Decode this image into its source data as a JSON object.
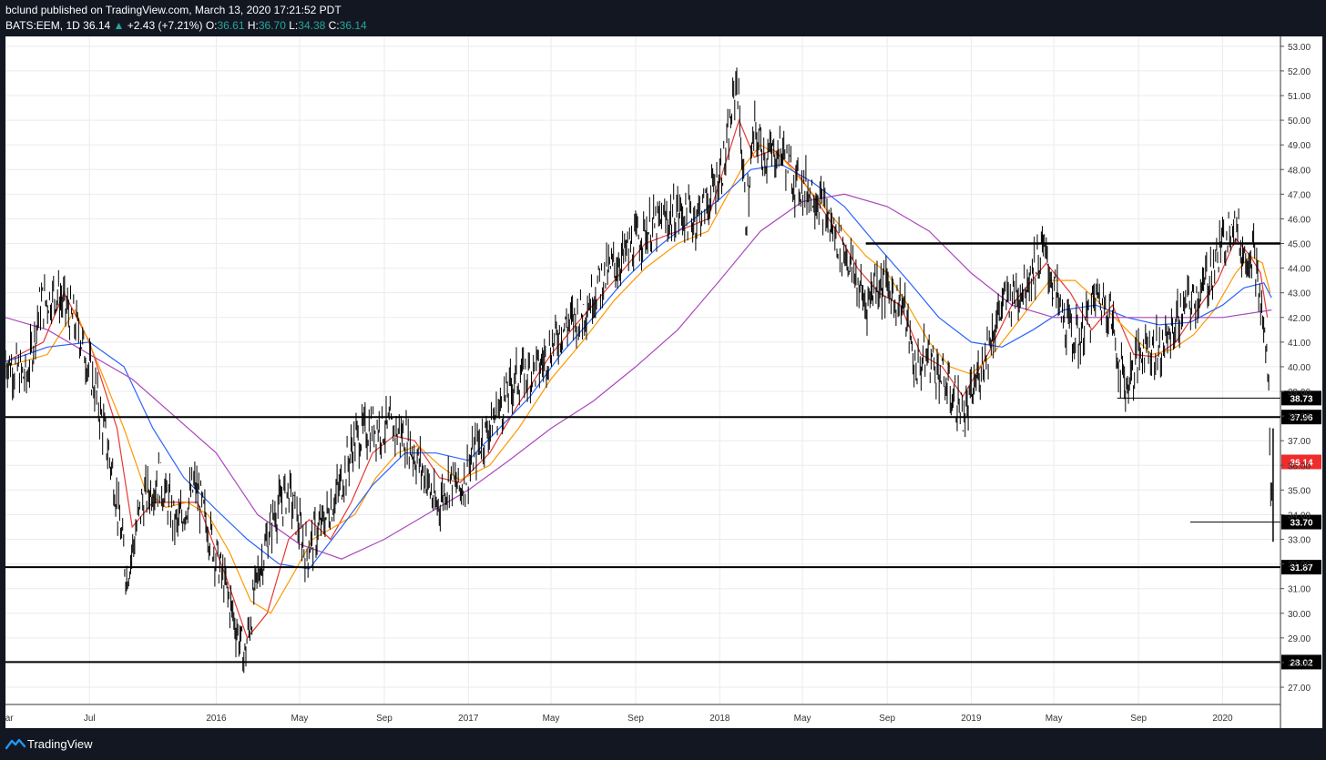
{
  "header": {
    "published_line": "bclund published on TradingView.com, March 13, 2020 17:21:52 PDT",
    "symbol": "BATS:EEM, 1D",
    "last": "36.14",
    "arrow": "▲",
    "change": "+2.43 (+7.21%)",
    "o_label": "O:",
    "o_value": "36.61",
    "h_label": "H:",
    "h_value": "36.70",
    "l_label": "L:",
    "l_value": "34.38",
    "c_label": "C:",
    "c_value": "36.14"
  },
  "footer": {
    "brand": "TradingView",
    "logo_icon": "tradingview-logo-icon"
  },
  "colors": {
    "background": "#ffffff",
    "grid": "#e9ebef",
    "candles": "#000000",
    "ma_red": "#e53935",
    "ma_orange": "#ff9800",
    "ma_blue": "#2962ff",
    "ma_purple": "#ab47bc",
    "last_price_label": "#ef2b2b"
  },
  "chart_data": {
    "type": "line",
    "title": "",
    "xlabel": "",
    "ylabel": "",
    "x_range": [
      "2015-03-01",
      "2020-03-25"
    ],
    "ylim": [
      26.3,
      53.4
    ],
    "grid": true,
    "x_ticks": [
      {
        "label": "Mar",
        "date": "2015-03-01"
      },
      {
        "label": "Jul",
        "date": "2015-07-01"
      },
      {
        "label": "2016",
        "date": "2016-01-01"
      },
      {
        "label": "May",
        "date": "2016-05-01"
      },
      {
        "label": "Sep",
        "date": "2016-09-01"
      },
      {
        "label": "2017",
        "date": "2017-01-01"
      },
      {
        "label": "May",
        "date": "2017-05-01"
      },
      {
        "label": "Sep",
        "date": "2017-09-01"
      },
      {
        "label": "2018",
        "date": "2018-01-01"
      },
      {
        "label": "May",
        "date": "2018-05-01"
      },
      {
        "label": "Sep",
        "date": "2018-09-01"
      },
      {
        "label": "2019",
        "date": "2019-01-01"
      },
      {
        "label": "May",
        "date": "2019-05-01"
      },
      {
        "label": "Sep",
        "date": "2019-09-01"
      },
      {
        "label": "2020",
        "date": "2020-01-01"
      }
    ],
    "y_ticks": [
      "27.00",
      "28.00",
      "29.00",
      "30.00",
      "31.00",
      "32.00",
      "33.00",
      "34.00",
      "35.00",
      "36.00",
      "37.00",
      "38.00",
      "39.00",
      "40.00",
      "41.00",
      "42.00",
      "43.00",
      "44.00",
      "45.00",
      "46.00",
      "47.00",
      "48.00",
      "49.00",
      "50.00",
      "51.00",
      "52.00",
      "53.00"
    ],
    "price_series": {
      "name": "BATS:EEM",
      "x": [
        "2015-03-01",
        "2015-04-01",
        "2015-04-20",
        "2015-05-15",
        "2015-06-15",
        "2015-07-10",
        "2015-08-05",
        "2015-08-24",
        "2015-09-15",
        "2015-10-10",
        "2015-11-05",
        "2015-12-01",
        "2015-12-20",
        "2016-01-20",
        "2016-02-11",
        "2016-03-01",
        "2016-03-25",
        "2016-04-15",
        "2016-05-10",
        "2016-06-01",
        "2016-06-27",
        "2016-07-20",
        "2016-08-15",
        "2016-09-07",
        "2016-10-01",
        "2016-11-01",
        "2016-11-15",
        "2016-12-05",
        "2016-12-20",
        "2017-01-15",
        "2017-02-10",
        "2017-03-10",
        "2017-04-15",
        "2017-05-15",
        "2017-06-15",
        "2017-07-15",
        "2017-08-15",
        "2017-09-15",
        "2017-10-10",
        "2017-11-01",
        "2017-11-25",
        "2017-12-15",
        "2018-01-10",
        "2018-01-26",
        "2018-02-08",
        "2018-02-20",
        "2018-03-10",
        "2018-04-01",
        "2018-04-20",
        "2018-05-20",
        "2018-06-15",
        "2018-07-05",
        "2018-08-01",
        "2018-08-15",
        "2018-09-07",
        "2018-09-25",
        "2018-10-11",
        "2018-11-01",
        "2018-12-01",
        "2018-12-24",
        "2019-01-15",
        "2019-02-15",
        "2019-03-15",
        "2019-04-17",
        "2019-05-13",
        "2019-06-05",
        "2019-07-01",
        "2019-07-20",
        "2019-08-05",
        "2019-08-15",
        "2019-09-10",
        "2019-10-01",
        "2019-10-20",
        "2019-11-10",
        "2019-12-01",
        "2020-01-02",
        "2020-01-15",
        "2020-01-31",
        "2020-02-15",
        "2020-02-27",
        "2020-03-05",
        "2020-03-09",
        "2020-03-12",
        "2020-03-13"
      ],
      "values": [
        40.3,
        39.5,
        42.5,
        43.0,
        41.5,
        39.0,
        35.5,
        31.5,
        34.5,
        35.5,
        33.5,
        35.2,
        33.5,
        30.5,
        28.2,
        31.5,
        34.0,
        35.0,
        32.5,
        33.5,
        35.0,
        37.0,
        37.6,
        37.5,
        37.2,
        35.5,
        34.2,
        35.5,
        35.0,
        36.8,
        38.0,
        39.5,
        40.0,
        41.5,
        42.2,
        43.6,
        44.5,
        45.5,
        45.8,
        46.3,
        46.0,
        46.7,
        48.5,
        51.8,
        46.0,
        49.5,
        48.5,
        48.8,
        47.5,
        47.0,
        45.5,
        44.5,
        42.5,
        43.5,
        43.0,
        42.5,
        40.0,
        40.5,
        39.0,
        38.0,
        40.0,
        42.5,
        43.2,
        44.7,
        42.0,
        41.0,
        42.8,
        42.5,
        40.0,
        39.2,
        41.0,
        40.6,
        41.5,
        42.5,
        43.0,
        45.0,
        46.2,
        44.5,
        44.8,
        42.0,
        40.5,
        38.0,
        33.7,
        36.14
      ]
    },
    "moving_averages": [
      {
        "color": "#e53935",
        "x": [
          "2015-03-01",
          "2015-04-25",
          "2015-05-25",
          "2015-07-01",
          "2015-08-10",
          "2015-09-01",
          "2015-10-01",
          "2015-11-01",
          "2015-12-05",
          "2016-01-15",
          "2016-02-15",
          "2016-03-15",
          "2016-04-15",
          "2016-05-15",
          "2016-06-15",
          "2016-07-15",
          "2016-08-15",
          "2016-09-15",
          "2016-10-15",
          "2016-11-20",
          "2016-12-20",
          "2017-02-01",
          "2017-03-15",
          "2017-05-01",
          "2017-06-15",
          "2017-08-01",
          "2017-09-15",
          "2017-11-01",
          "2017-12-15",
          "2018-01-29",
          "2018-02-20",
          "2018-03-20",
          "2018-04-20",
          "2018-05-20",
          "2018-06-20",
          "2018-07-20",
          "2018-08-20",
          "2018-09-20",
          "2018-10-20",
          "2018-11-20",
          "2018-12-20",
          "2019-01-25",
          "2019-03-01",
          "2019-04-20",
          "2019-05-25",
          "2019-06-25",
          "2019-07-25",
          "2019-08-25",
          "2019-09-25",
          "2019-10-25",
          "2019-11-25",
          "2019-12-25",
          "2020-01-20",
          "2020-02-10",
          "2020-02-25",
          "2020-03-06"
        ],
        "values": [
          40.2,
          41.0,
          43.0,
          41.0,
          37.5,
          33.5,
          34.5,
          34.5,
          34.5,
          31.5,
          29.0,
          30.0,
          33.0,
          33.8,
          33.0,
          34.5,
          36.5,
          37.2,
          37.0,
          35.5,
          35.3,
          36.5,
          38.5,
          40.5,
          42.0,
          43.5,
          45.0,
          45.5,
          46.0,
          50.0,
          48.5,
          48.8,
          48.0,
          46.8,
          45.5,
          44.0,
          43.0,
          42.5,
          40.5,
          40.0,
          38.8,
          40.5,
          42.5,
          44.2,
          43.0,
          41.5,
          42.5,
          40.5,
          40.4,
          41.0,
          42.3,
          43.5,
          45.2,
          44.5,
          43.8,
          42.0
        ]
      },
      {
        "color": "#ff9800",
        "x": [
          "2015-03-01",
          "2015-05-01",
          "2015-06-10",
          "2015-07-15",
          "2015-08-20",
          "2015-09-20",
          "2015-10-20",
          "2015-11-20",
          "2015-12-20",
          "2016-01-20",
          "2016-02-20",
          "2016-03-20",
          "2016-04-20",
          "2016-05-20",
          "2016-06-20",
          "2016-07-20",
          "2016-08-20",
          "2016-09-20",
          "2016-10-20",
          "2016-11-20",
          "2016-12-20",
          "2017-02-01",
          "2017-03-15",
          "2017-05-01",
          "2017-06-15",
          "2017-08-01",
          "2017-09-15",
          "2017-11-01",
          "2017-12-15",
          "2018-02-01",
          "2018-03-01",
          "2018-04-01",
          "2018-05-01",
          "2018-06-01",
          "2018-07-01",
          "2018-08-01",
          "2018-09-01",
          "2018-10-01",
          "2018-11-01",
          "2018-12-01",
          "2019-01-01",
          "2019-02-01",
          "2019-03-15",
          "2019-04-25",
          "2019-06-01",
          "2019-07-10",
          "2019-08-15",
          "2019-09-20",
          "2019-10-20",
          "2019-11-20",
          "2019-12-20",
          "2020-01-20",
          "2020-02-10",
          "2020-02-28",
          "2020-03-10"
        ],
        "values": [
          40.0,
          40.5,
          42.3,
          40.0,
          37.5,
          35.0,
          34.3,
          34.5,
          34.0,
          32.5,
          30.5,
          30.0,
          31.5,
          33.0,
          33.5,
          34.0,
          35.5,
          36.5,
          36.8,
          36.0,
          35.4,
          36.0,
          37.5,
          39.5,
          41.0,
          42.7,
          44.0,
          45.0,
          45.5,
          48.0,
          49.0,
          48.5,
          47.5,
          46.5,
          45.5,
          44.5,
          43.8,
          42.5,
          41.0,
          40.0,
          39.7,
          40.5,
          42.0,
          43.5,
          43.5,
          42.5,
          41.5,
          40.5,
          40.7,
          41.3,
          42.3,
          43.8,
          44.5,
          44.2,
          43.0
        ]
      },
      {
        "color": "#2962ff",
        "x": [
          "2015-03-01",
          "2015-05-01",
          "2015-07-01",
          "2015-08-20",
          "2015-10-01",
          "2015-11-15",
          "2016-01-01",
          "2016-02-15",
          "2016-04-01",
          "2016-05-15",
          "2016-07-01",
          "2016-08-15",
          "2016-10-01",
          "2016-11-15",
          "2017-01-01",
          "2017-02-15",
          "2017-04-01",
          "2017-05-15",
          "2017-07-01",
          "2017-08-15",
          "2017-10-01",
          "2017-11-15",
          "2018-01-01",
          "2018-02-15",
          "2018-04-01",
          "2018-05-15",
          "2018-07-01",
          "2018-08-15",
          "2018-10-01",
          "2018-11-15",
          "2019-01-01",
          "2019-02-15",
          "2019-04-01",
          "2019-05-15",
          "2019-07-01",
          "2019-08-15",
          "2019-10-01",
          "2019-11-15",
          "2020-01-01",
          "2020-02-01",
          "2020-03-01",
          "2020-03-12"
        ],
        "values": [
          40.2,
          40.8,
          41.0,
          40.0,
          37.5,
          35.5,
          34.2,
          33.0,
          32.0,
          31.8,
          33.5,
          35.2,
          36.5,
          36.5,
          36.2,
          37.5,
          38.8,
          40.5,
          42.0,
          43.5,
          44.8,
          45.8,
          46.8,
          48.0,
          48.2,
          47.5,
          46.5,
          45.0,
          43.5,
          42.0,
          41.0,
          40.8,
          41.5,
          42.3,
          42.5,
          42.0,
          41.7,
          41.8,
          42.5,
          43.2,
          43.4,
          42.8
        ]
      },
      {
        "color": "#ab47bc",
        "x": [
          "2015-03-01",
          "2015-05-01",
          "2015-07-01",
          "2015-09-01",
          "2015-11-01",
          "2016-01-01",
          "2016-03-01",
          "2016-05-01",
          "2016-07-01",
          "2016-09-01",
          "2016-11-01",
          "2017-01-01",
          "2017-03-01",
          "2017-05-01",
          "2017-07-01",
          "2017-09-01",
          "2017-11-01",
          "2018-01-01",
          "2018-03-01",
          "2018-05-01",
          "2018-07-01",
          "2018-09-01",
          "2018-11-01",
          "2019-01-01",
          "2019-03-01",
          "2019-05-01",
          "2019-07-01",
          "2019-09-01",
          "2019-11-01",
          "2020-01-01",
          "2020-03-12"
        ],
        "values": [
          42.0,
          41.5,
          40.5,
          39.5,
          38.0,
          36.5,
          34.0,
          32.8,
          32.2,
          33.0,
          34.0,
          35.0,
          36.2,
          37.5,
          38.6,
          40.0,
          41.5,
          43.5,
          45.5,
          46.7,
          47.0,
          46.5,
          45.5,
          43.8,
          42.5,
          42.0,
          42.0,
          42.0,
          42.0,
          42.0,
          42.3
        ]
      }
    ],
    "horizontal_levels": [
      {
        "value": 45.0,
        "label": "",
        "from": "2018-08-01",
        "to": "2020-03-13",
        "weight": "heavy"
      },
      {
        "value": 38.73,
        "label": "38.73",
        "from": "2019-08-01",
        "to": "2020-03-13",
        "weight": "thin"
      },
      {
        "value": 37.96,
        "label": "37.96",
        "from": "2015-03-01",
        "to": "2020-03-13",
        "weight": "medium"
      },
      {
        "value": 33.7,
        "label": "33.70",
        "from": "2019-11-15",
        "to": "2020-03-13",
        "weight": "thin"
      },
      {
        "value": 31.87,
        "label": "31.87",
        "from": "2015-03-01",
        "to": "2020-03-13",
        "weight": "medium"
      },
      {
        "value": 28.02,
        "label": "28.02",
        "from": "2015-03-01",
        "to": "2020-03-13",
        "weight": "medium"
      }
    ],
    "last_price": {
      "value": 36.14,
      "label": "36.14"
    }
  }
}
